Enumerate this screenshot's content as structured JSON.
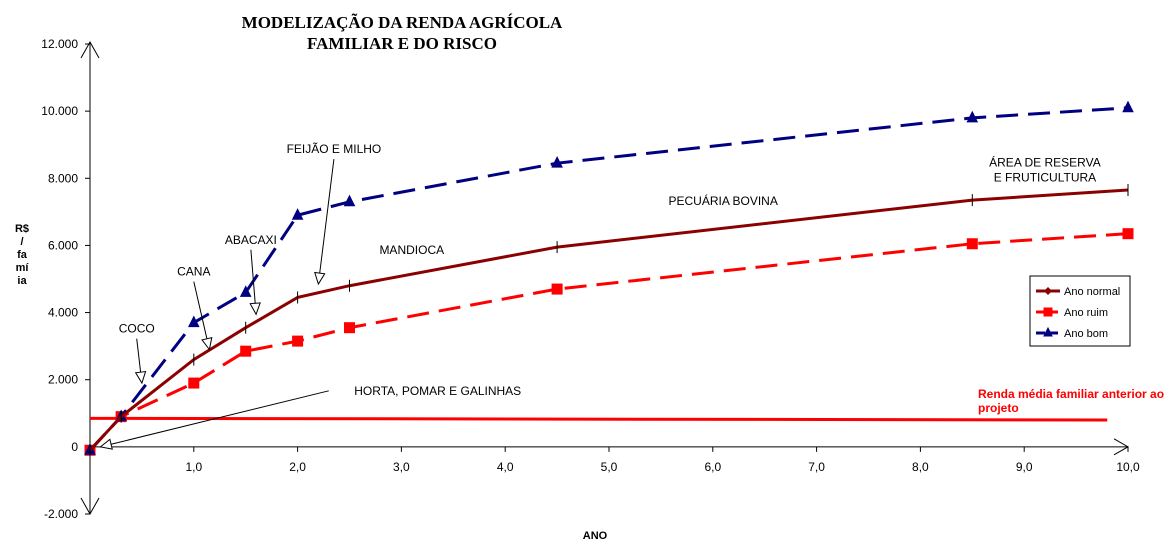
{
  "chart_data": {
    "type": "line",
    "title": [
      "MODELIZAÇÃO DA RENDA AGRÍCOLA",
      "FAMILIAR E DO RISCO"
    ],
    "xlabel": "ANO",
    "ylabel": [
      "R$",
      "/",
      "fa",
      "mí",
      "ia"
    ],
    "xlim": [
      0,
      10
    ],
    "ylim": [
      -2000,
      12000
    ],
    "x_ticks": [
      "1,0",
      "2,0",
      "3,0",
      "4,0",
      "5,0",
      "6,0",
      "7,0",
      "8,0",
      "9,0",
      "10,0"
    ],
    "y_ticks": [
      "-2.000",
      "0",
      "2.000",
      "4.000",
      "6.000",
      "8.000",
      "10.000",
      "12.000"
    ],
    "legend_position": "right",
    "series": [
      {
        "name": "Ano normal",
        "color": "#8b0000",
        "style": "solid",
        "marker": "diamond",
        "x": [
          0,
          0.3,
          1.0,
          1.5,
          2.0,
          2.5,
          4.5,
          8.5,
          10.0
        ],
        "y": [
          -100,
          900,
          2600,
          3550,
          4450,
          4800,
          5950,
          7350,
          7650
        ]
      },
      {
        "name": "Ano ruim",
        "color": "#ff0000",
        "style": "dashed",
        "marker": "square",
        "x": [
          0,
          0.3,
          1.0,
          1.5,
          2.0,
          2.5,
          4.5,
          8.5,
          10.0
        ],
        "y": [
          -100,
          900,
          1900,
          2850,
          3150,
          3550,
          4700,
          6050,
          6350
        ]
      },
      {
        "name": "Ano bom",
        "color": "#000080",
        "style": "dashed",
        "marker": "triangle",
        "x": [
          0,
          0.3,
          1.0,
          1.5,
          2.0,
          2.5,
          4.5,
          8.5,
          10.0
        ],
        "y": [
          -100,
          900,
          3700,
          4600,
          6900,
          7300,
          8450,
          9800,
          10100
        ]
      }
    ],
    "reference_line": {
      "label": "Renda média familiar anterior ao projeto",
      "color": "#ff0000",
      "y_start": 850,
      "y_end": 800,
      "x_start": 0,
      "x_end": 9.8
    },
    "annotations": [
      {
        "text": "COCO",
        "x": 0.45,
        "y": 3400,
        "arrow_to": [
          0.5,
          1900
        ]
      },
      {
        "text": "CANA",
        "x": 1.0,
        "y": 5100,
        "arrow_to": [
          1.15,
          2900
        ]
      },
      {
        "text": "ABACAXI",
        "x": 1.55,
        "y": 6050,
        "arrow_to": [
          1.6,
          3950
        ]
      },
      {
        "text": "FEIJÃO E MILHO",
        "x": 2.35,
        "y": 8750,
        "arrow_to": [
          2.2,
          4850
        ]
      },
      {
        "text": "HORTA, POMAR E GALINHAS",
        "x": 3.35,
        "y": 1550,
        "arrow_to": [
          0.1,
          0
        ]
      },
      {
        "text": "MANDIOCA",
        "x": 3.1,
        "y": 5750,
        "arrow_to": null
      },
      {
        "text": "PECUÁRIA BOVINA",
        "x": 6.1,
        "y": 7200,
        "arrow_to": null
      },
      {
        "text": [
          "ÁREA DE RESERVA",
          "E FRUTICULTURA"
        ],
        "x": 9.2,
        "y": 8350,
        "arrow_to": null
      }
    ]
  }
}
